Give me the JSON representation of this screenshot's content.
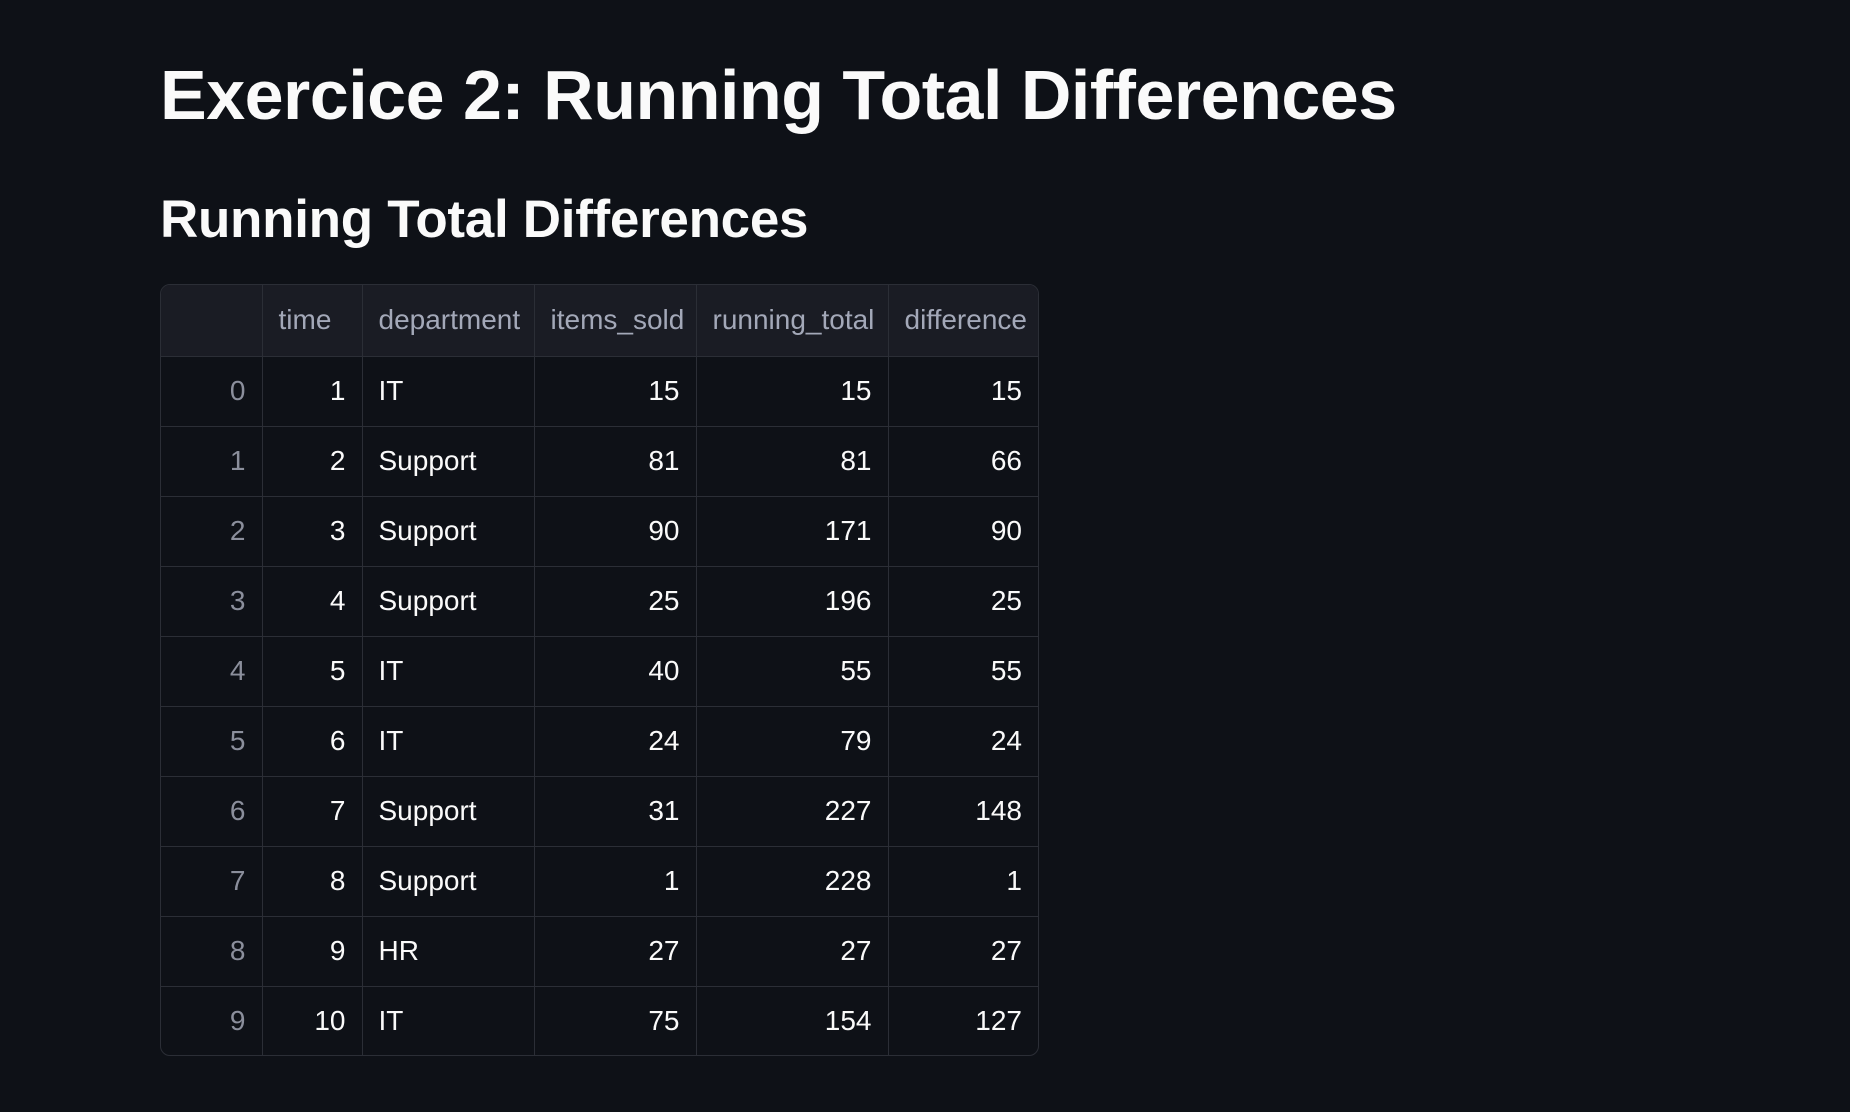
{
  "page": {
    "title": "Exercice 2: Running Total Differences",
    "subtitle": "Running Total Differences"
  },
  "table": {
    "columns": [
      "",
      "time",
      "department",
      "items_sold",
      "running_total",
      "difference"
    ],
    "rows": [
      {
        "index": "0",
        "time": "1",
        "department": "IT",
        "items_sold": "15",
        "running_total": "15",
        "difference": "15"
      },
      {
        "index": "1",
        "time": "2",
        "department": "Support",
        "items_sold": "81",
        "running_total": "81",
        "difference": "66"
      },
      {
        "index": "2",
        "time": "3",
        "department": "Support",
        "items_sold": "90",
        "running_total": "171",
        "difference": "90"
      },
      {
        "index": "3",
        "time": "4",
        "department": "Support",
        "items_sold": "25",
        "running_total": "196",
        "difference": "25"
      },
      {
        "index": "4",
        "time": "5",
        "department": "IT",
        "items_sold": "40",
        "running_total": "55",
        "difference": "55"
      },
      {
        "index": "5",
        "time": "6",
        "department": "IT",
        "items_sold": "24",
        "running_total": "79",
        "difference": "24"
      },
      {
        "index": "6",
        "time": "7",
        "department": "Support",
        "items_sold": "31",
        "running_total": "227",
        "difference": "148"
      },
      {
        "index": "7",
        "time": "8",
        "department": "Support",
        "items_sold": "1",
        "running_total": "228",
        "difference": "1"
      },
      {
        "index": "8",
        "time": "9",
        "department": "HR",
        "items_sold": "27",
        "running_total": "27",
        "difference": "27"
      },
      {
        "index": "9",
        "time": "10",
        "department": "IT",
        "items_sold": "75",
        "running_total": "154",
        "difference": "127"
      }
    ]
  },
  "colors": {
    "background": "#0e1117",
    "header_background": "#1a1c24",
    "border": "#2b2e36",
    "text": "#fafafa",
    "muted_text": "#a3a8b8"
  }
}
